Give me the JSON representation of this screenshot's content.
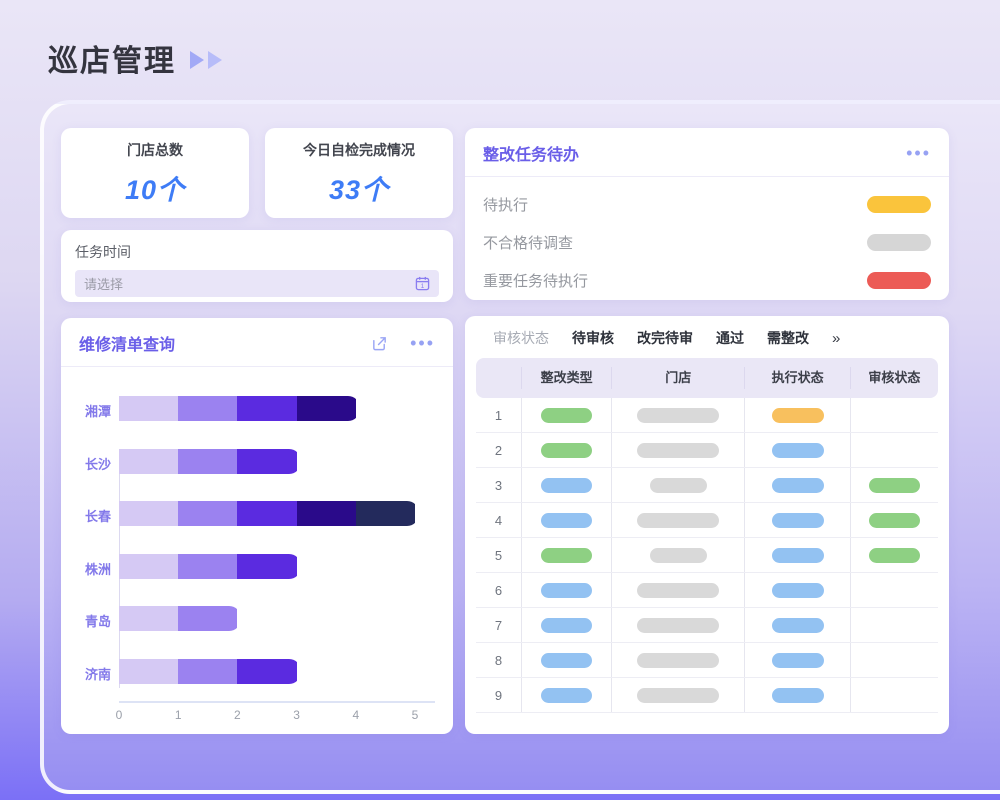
{
  "page": {
    "title": "巡店管理"
  },
  "stats": [
    {
      "label": "门店总数",
      "value": "10个"
    },
    {
      "label": "今日自检完成情况",
      "value": "33个"
    }
  ],
  "task_time": {
    "label": "任务时间",
    "placeholder": "请选择",
    "calendar_icon": "calendar-icon"
  },
  "todo_card": {
    "title": "整改任务待办",
    "menu_icon": "ellipsis-icon",
    "items": [
      {
        "label": "待执行",
        "color": "#fac43c"
      },
      {
        "label": "不合格待调查",
        "color": "#d6d6d6"
      },
      {
        "label": "重要任务待执行",
        "color": "#ec5b56"
      }
    ]
  },
  "repair_card": {
    "title": "维修清单查询",
    "share_icon": "share-icon",
    "menu_icon": "ellipsis-icon",
    "chart_data": {
      "type": "bar",
      "orientation": "horizontal-stacked",
      "title": "",
      "xlabel": "",
      "ylabel": "",
      "categories": [
        "湘潭",
        "长沙",
        "长春",
        "株洲",
        "青岛",
        "济南"
      ],
      "series": [
        {
          "name": "segment-1",
          "color": "#d5c9f4",
          "values": [
            1,
            1,
            1,
            1,
            1,
            1
          ]
        },
        {
          "name": "segment-2",
          "color": "#9b82f0",
          "values": [
            1,
            1,
            1,
            1,
            1,
            1
          ]
        },
        {
          "name": "segment-3",
          "color": "#5b2be0",
          "values": [
            1,
            1,
            1,
            1,
            0,
            1
          ]
        },
        {
          "name": "segment-4",
          "color": "#2a0a8a",
          "values": [
            1,
            0,
            1,
            0,
            0,
            0
          ]
        },
        {
          "name": "segment-5",
          "color": "#232a5c",
          "values": [
            0,
            0,
            1,
            0,
            0,
            0
          ]
        }
      ],
      "totals": [
        4,
        3,
        5,
        3,
        2,
        3
      ],
      "xlim": [
        0,
        5
      ],
      "xticks": [
        "0",
        "1",
        "2",
        "3",
        "4",
        "5"
      ],
      "grid": false,
      "legend": "none"
    }
  },
  "table_card": {
    "filter_label": "审核状态",
    "tabs": [
      "待审核",
      "改完待审",
      "通过",
      "需整改"
    ],
    "more_symbol": "»",
    "columns": [
      "",
      "整改类型",
      "门店",
      "执行状态",
      "审核状态"
    ],
    "pill_colors": {
      "green": "#8ed083",
      "blue": "#93c2f2",
      "orange": "#f8c05e",
      "gray": "#d9d9d9"
    },
    "rows": [
      {
        "index": "1",
        "type_pill": "green",
        "store_pill": "gray-wide",
        "exec_pill": "orange",
        "review_pill": ""
      },
      {
        "index": "2",
        "type_pill": "green",
        "store_pill": "gray-wide",
        "exec_pill": "blue",
        "review_pill": ""
      },
      {
        "index": "3",
        "type_pill": "blue",
        "store_pill": "gray-narrow",
        "exec_pill": "blue",
        "review_pill": "green"
      },
      {
        "index": "4",
        "type_pill": "blue",
        "store_pill": "gray-wide",
        "exec_pill": "blue",
        "review_pill": "green"
      },
      {
        "index": "5",
        "type_pill": "green",
        "store_pill": "gray-narrow",
        "exec_pill": "blue",
        "review_pill": "green"
      },
      {
        "index": "6",
        "type_pill": "blue",
        "store_pill": "gray-wide",
        "exec_pill": "blue",
        "review_pill": ""
      },
      {
        "index": "7",
        "type_pill": "blue",
        "store_pill": "gray-wide",
        "exec_pill": "blue",
        "review_pill": ""
      },
      {
        "index": "8",
        "type_pill": "blue",
        "store_pill": "gray-wide",
        "exec_pill": "blue",
        "review_pill": ""
      },
      {
        "index": "9",
        "type_pill": "blue",
        "store_pill": "gray-wide",
        "exec_pill": "blue",
        "review_pill": ""
      }
    ]
  }
}
